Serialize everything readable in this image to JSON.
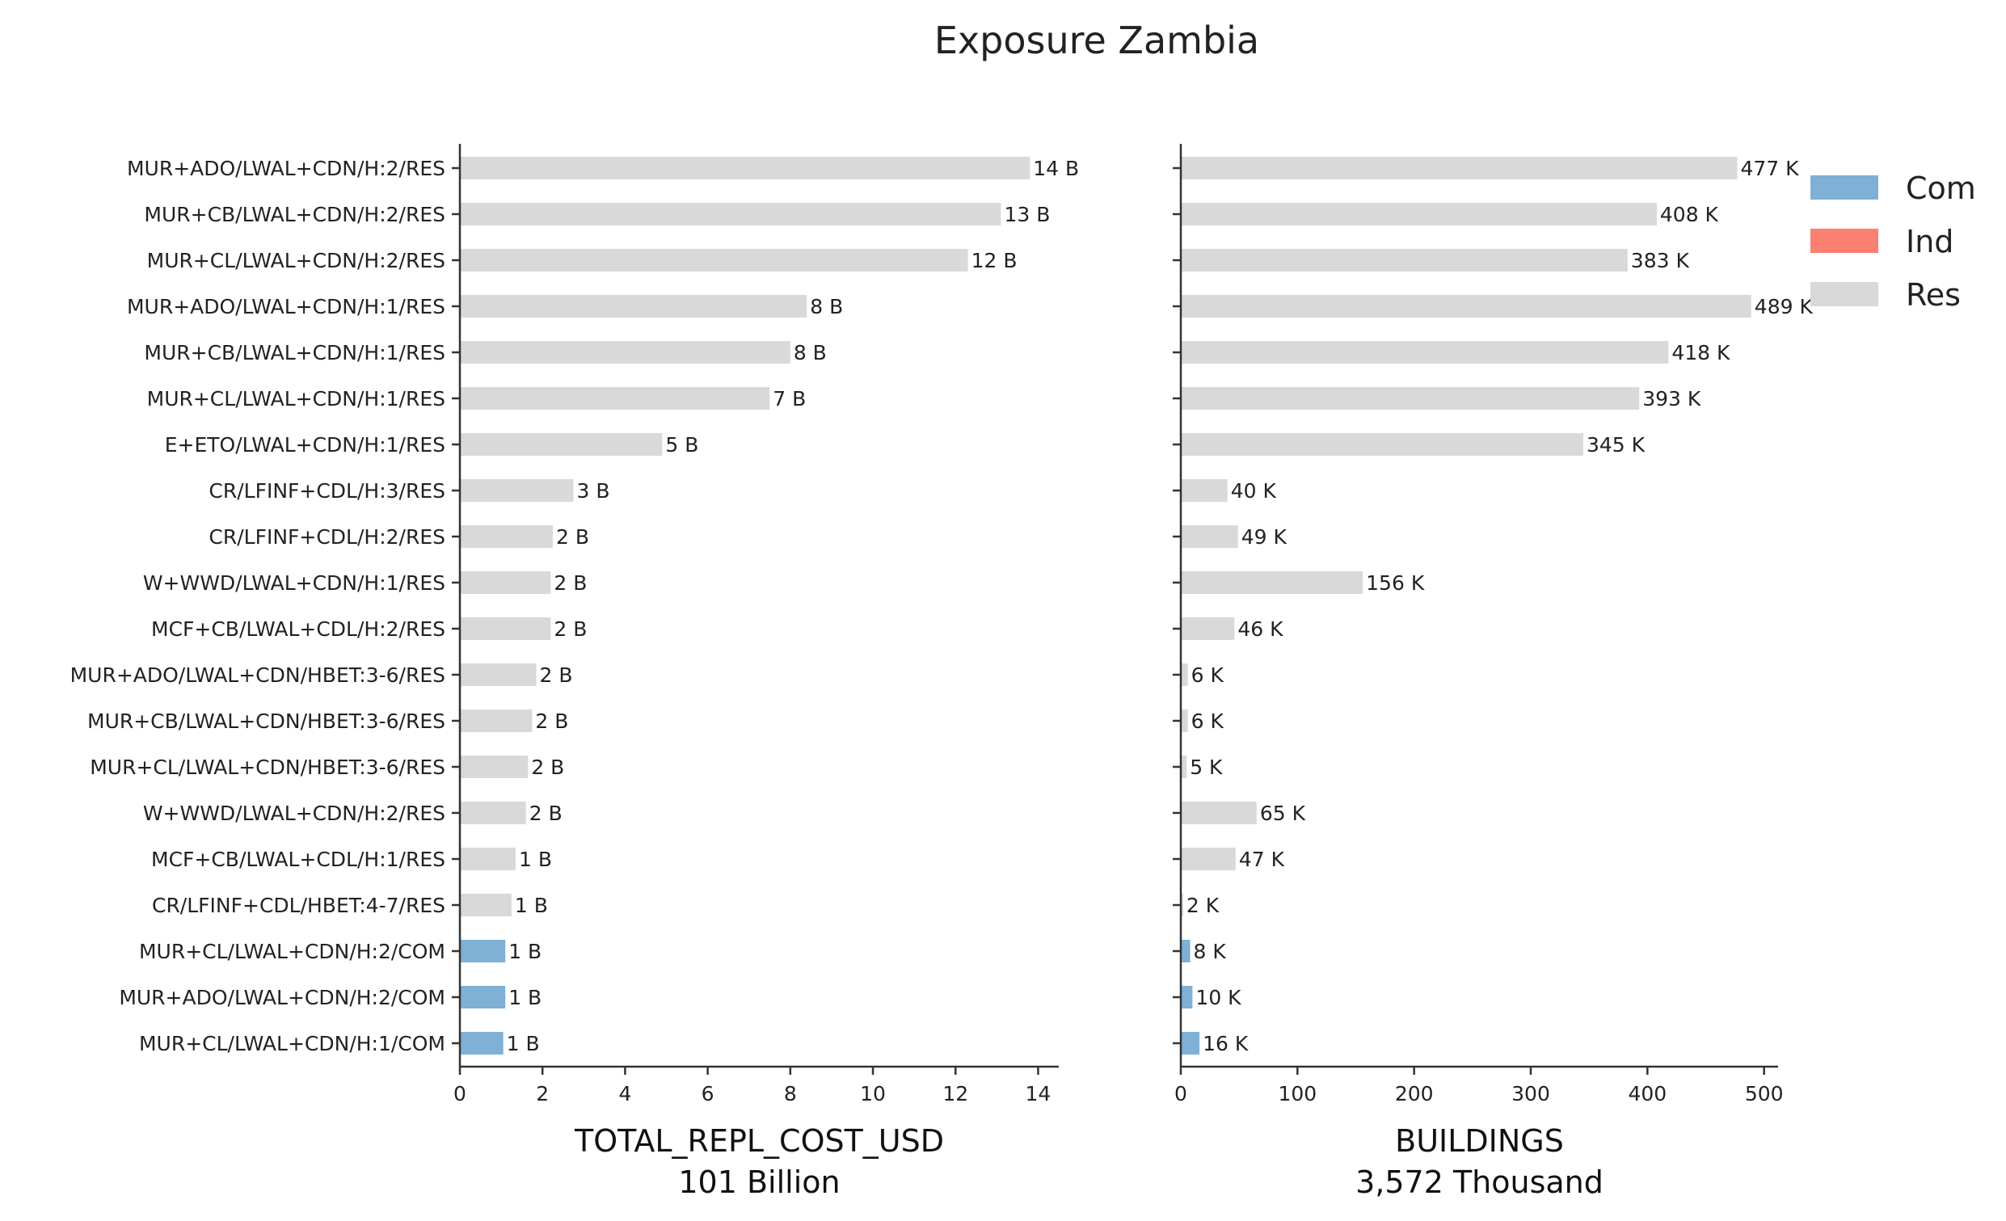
{
  "title": "Exposure Zambia",
  "colors": {
    "Com": "#7fb0d6",
    "Ind": "#fa8072",
    "Res": "#d9d9d9"
  },
  "legend": [
    {
      "name": "Com",
      "color": "#7fb0d6"
    },
    {
      "name": "Ind",
      "color": "#fa8072"
    },
    {
      "name": "Res",
      "color": "#d9d9d9"
    }
  ],
  "chart_data": [
    {
      "type": "bar",
      "orientation": "horizontal",
      "xlabel": "TOTAL_REPL_COST_USD",
      "xlabel2": "101 Billion",
      "xlim": [
        0,
        14.5
      ],
      "ticks": [
        0,
        2,
        4,
        6,
        8,
        10,
        12,
        14
      ],
      "tick_labels": [
        "0",
        "2",
        "4",
        "6",
        "8",
        "10",
        "12",
        "14"
      ],
      "categories": [
        "MUR+ADO/LWAL+CDN/H:2/RES",
        "MUR+CB/LWAL+CDN/H:2/RES",
        "MUR+CL/LWAL+CDN/H:2/RES",
        "MUR+ADO/LWAL+CDN/H:1/RES",
        "MUR+CB/LWAL+CDN/H:1/RES",
        "MUR+CL/LWAL+CDN/H:1/RES",
        "E+ETO/LWAL+CDN/H:1/RES",
        "CR/LFINF+CDL/H:3/RES",
        "CR/LFINF+CDL/H:2/RES",
        "W+WWD/LWAL+CDN/H:1/RES",
        "MCF+CB/LWAL+CDL/H:2/RES",
        "MUR+ADO/LWAL+CDN/HBET:3-6/RES",
        "MUR+CB/LWAL+CDN/HBET:3-6/RES",
        "MUR+CL/LWAL+CDN/HBET:3-6/RES",
        "W+WWD/LWAL+CDN/H:2/RES",
        "MCF+CB/LWAL+CDL/H:1/RES",
        "CR/LFINF+CDL/HBET:4-7/RES",
        "MUR+CL/LWAL+CDN/H:2/COM",
        "MUR+ADO/LWAL+CDN/H:2/COM",
        "MUR+CL/LWAL+CDN/H:1/COM"
      ],
      "occupancy": [
        "Res",
        "Res",
        "Res",
        "Res",
        "Res",
        "Res",
        "Res",
        "Res",
        "Res",
        "Res",
        "Res",
        "Res",
        "Res",
        "Res",
        "Res",
        "Res",
        "Res",
        "Com",
        "Com",
        "Com"
      ],
      "values": [
        13.8,
        13.1,
        12.3,
        8.4,
        8.0,
        7.5,
        4.9,
        2.75,
        2.25,
        2.2,
        2.2,
        1.85,
        1.75,
        1.65,
        1.6,
        1.35,
        1.25,
        1.1,
        1.1,
        1.05
      ],
      "data_labels": [
        "14 B",
        "13 B",
        "12 B",
        "8 B",
        "8 B",
        "7 B",
        "5 B",
        "3 B",
        "2 B",
        "2 B",
        "2 B",
        "2 B",
        "2 B",
        "2 B",
        "2 B",
        "1 B",
        "1 B",
        "1 B",
        "1 B",
        "1 B"
      ]
    },
    {
      "type": "bar",
      "orientation": "horizontal",
      "xlabel": "BUILDINGS",
      "xlabel2": "3,572 Thousand",
      "xlim": [
        0,
        512
      ],
      "ticks": [
        0,
        100,
        200,
        300,
        400,
        500
      ],
      "tick_labels": [
        "0",
        "100",
        "200",
        "300",
        "400",
        "500"
      ],
      "occupancy": [
        "Res",
        "Res",
        "Res",
        "Res",
        "Res",
        "Res",
        "Res",
        "Res",
        "Res",
        "Res",
        "Res",
        "Res",
        "Res",
        "Res",
        "Res",
        "Res",
        "Res",
        "Com",
        "Com",
        "Com"
      ],
      "values": [
        477,
        408,
        383,
        489,
        418,
        393,
        345,
        40,
        49,
        156,
        46,
        6,
        6,
        5,
        65,
        47,
        2,
        8,
        10,
        16
      ],
      "data_labels": [
        "477 K",
        "408 K",
        "383 K",
        "489 K",
        "418 K",
        "393 K",
        "345 K",
        "40 K",
        "49 K",
        "156 K",
        "46 K",
        "6 K",
        "6 K",
        "5 K",
        "65 K",
        "47 K",
        "2 K",
        "8 K",
        "10 K",
        "16 K"
      ]
    }
  ]
}
